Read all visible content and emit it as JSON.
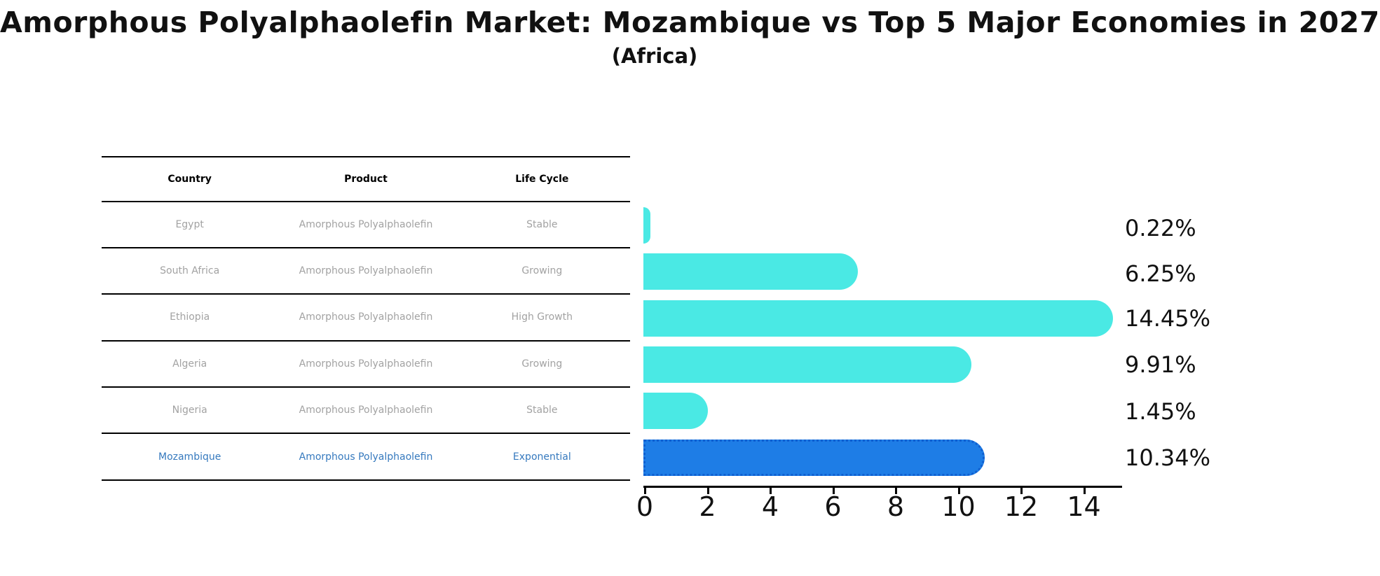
{
  "page": {
    "title": "Amorphous Polyalphaolefin Market: Mozambique vs Top 5 Major Economies in 2027",
    "subtitle": "(Africa)"
  },
  "table": {
    "headers": {
      "country": "Country",
      "product": "Product",
      "life_cycle": "Life Cycle"
    },
    "rows": [
      {
        "country": "Egypt",
        "product": "Amorphous Polyalphaolefin",
        "life_cycle": "Stable"
      },
      {
        "country": "South Africa",
        "product": "Amorphous Polyalphaolefin",
        "life_cycle": "Growing"
      },
      {
        "country": "Ethiopia",
        "product": "Amorphous Polyalphaolefin",
        "life_cycle": "High Growth"
      },
      {
        "country": "Algeria",
        "product": "Amorphous Polyalphaolefin",
        "life_cycle": "Growing"
      },
      {
        "country": "Nigeria",
        "product": "Amorphous Polyalphaolefin",
        "life_cycle": "Stable"
      },
      {
        "country": "Mozambique",
        "product": "Amorphous Polyalphaolefin",
        "life_cycle": "Exponential"
      }
    ],
    "highlight_row": 5
  },
  "chart_data": {
    "type": "bar",
    "orientation": "horizontal",
    "categories": [
      "Egypt",
      "South Africa",
      "Ethiopia",
      "Algeria",
      "Nigeria",
      "Mozambique"
    ],
    "values": [
      0.22,
      6.25,
      14.45,
      9.91,
      1.45,
      10.34
    ],
    "value_labels": [
      "0.22%",
      "6.25%",
      "14.45%",
      "9.91%",
      "1.45%",
      "10.34%"
    ],
    "x_ticks": [
      "0",
      "2",
      "4",
      "6",
      "8",
      "10",
      "12",
      "14"
    ],
    "xlim": [
      0,
      15.2
    ],
    "grid": false,
    "highlight_index": 5,
    "colors": {
      "bar": "#4AE9E4",
      "highlight_bar": "#1E7DE6",
      "highlight_bar_border": "#0F5FD0",
      "highlight_text": "#3579BE",
      "table_text": "#A2A2A2",
      "axis": "#000000"
    }
  }
}
